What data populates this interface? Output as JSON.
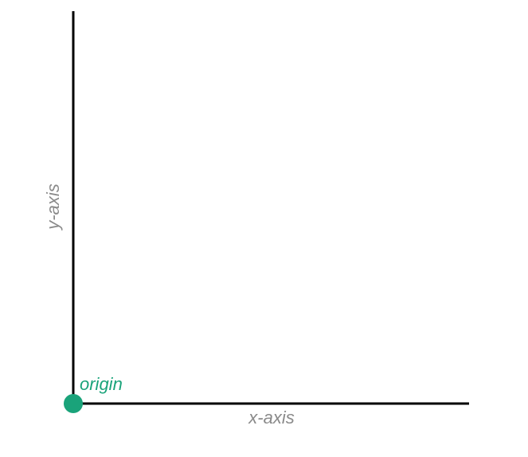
{
  "diagram": {
    "labels": {
      "x_axis": "x-axis",
      "y_axis": "y-axis",
      "origin": "origin"
    },
    "colors": {
      "axis_line": "#000000",
      "axis_label": "#8a8a8a",
      "origin": "#1aa37a",
      "background": "#ffffff"
    }
  }
}
